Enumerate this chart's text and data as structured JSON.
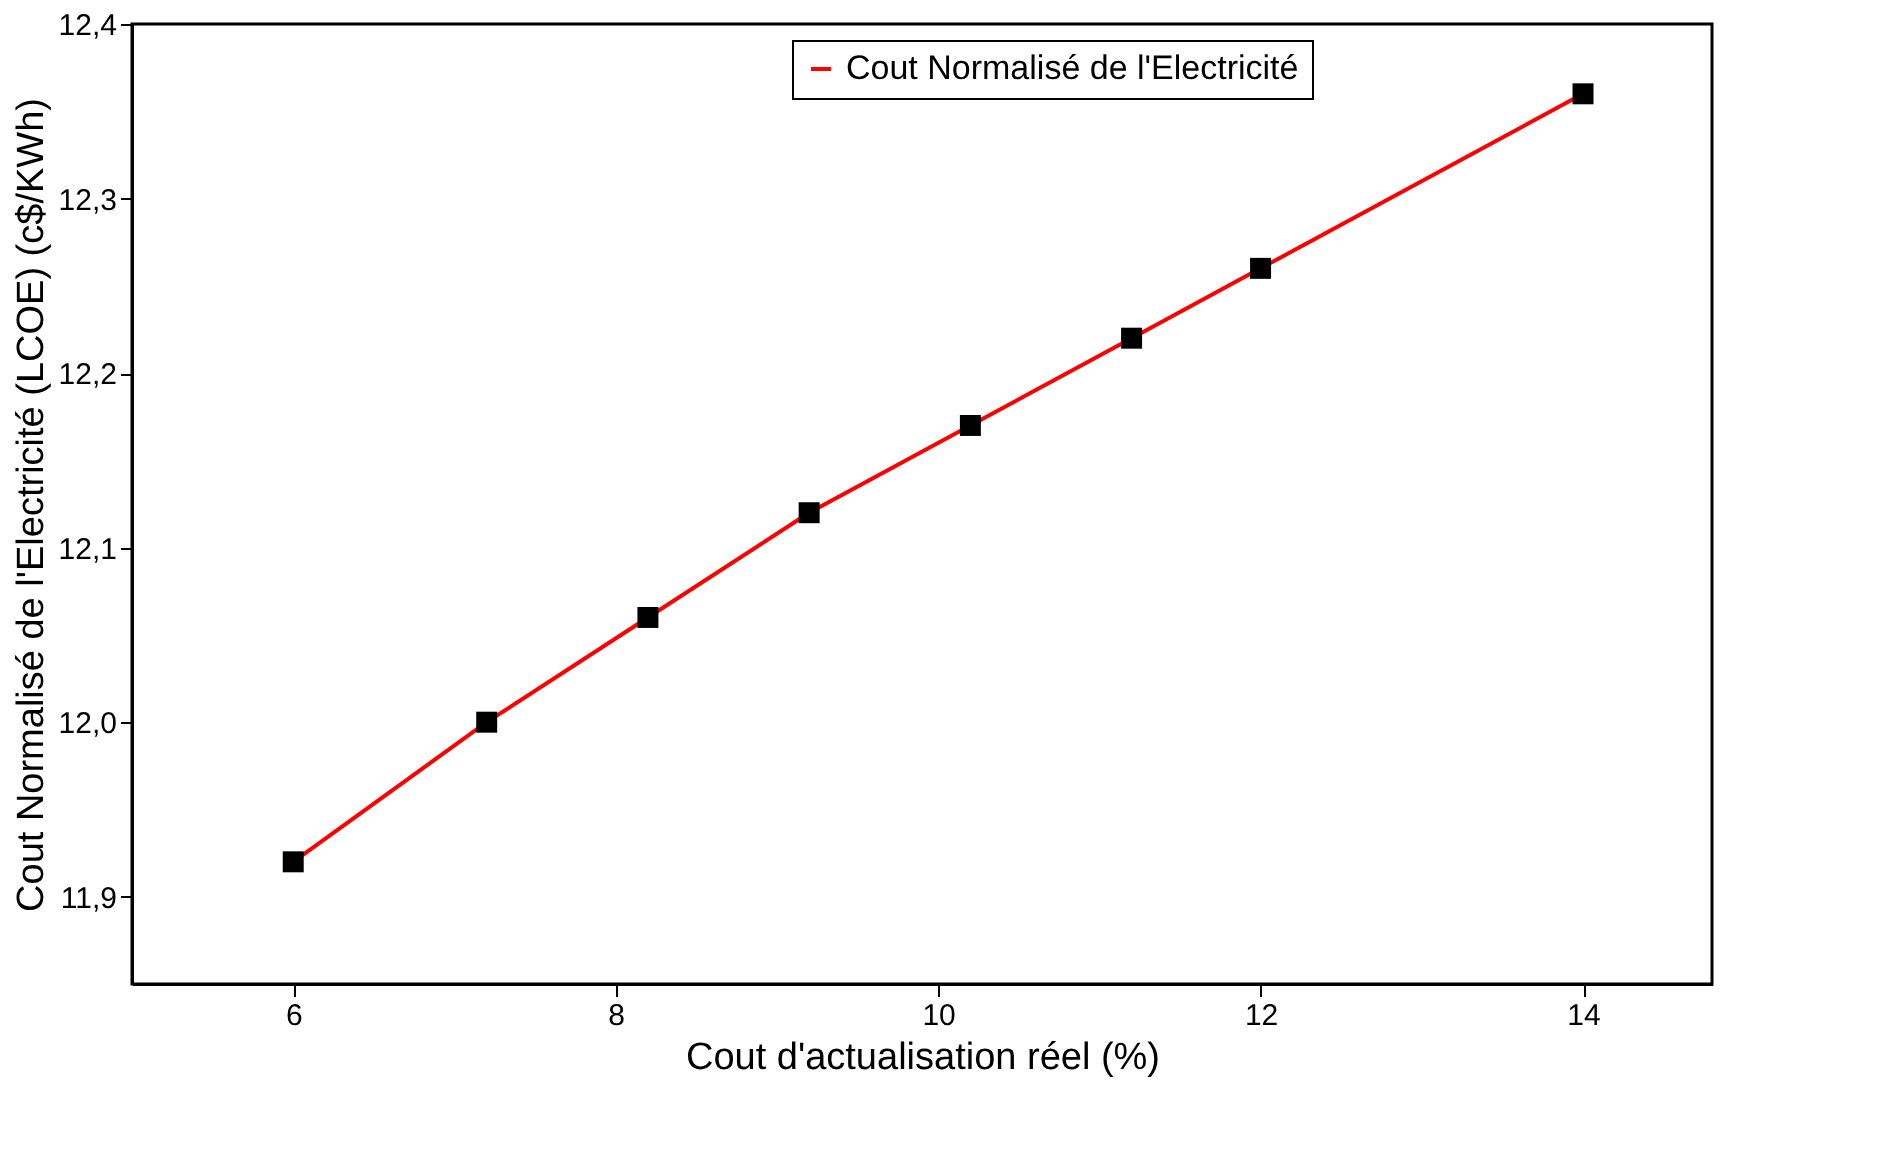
{
  "chart_data": {
    "type": "line",
    "xlabel": "Cout d'actualisation réel (%)",
    "ylabel": "Cout Normalisé de l'Electricité (LCOE) (c$/KWh)",
    "x": [
      6,
      7.2,
      8.2,
      9.2,
      10.2,
      11.2,
      12,
      14
    ],
    "series": [
      {
        "name": "Cout Normalisé de l'Electricité",
        "color": "#ff0000",
        "values": [
          11.92,
          12.0,
          12.06,
          12.12,
          12.17,
          12.22,
          12.26,
          12.36
        ]
      }
    ],
    "xlim": [
      5,
      14.8
    ],
    "xticks": [
      6,
      8,
      10,
      12,
      14
    ],
    "ylim": [
      11.85,
      12.4
    ],
    "yticks": [
      {
        "value": 11.9,
        "label": "11,9"
      },
      {
        "value": 12.0,
        "label": "12,0"
      },
      {
        "value": 12.1,
        "label": "12,1"
      },
      {
        "value": 12.2,
        "label": "12,2"
      },
      {
        "value": 12.3,
        "label": "12,3"
      },
      {
        "value": 12.4,
        "label": "12,4"
      }
    ],
    "marker": "square",
    "line_style": "solid",
    "grid": false,
    "legend": "top right"
  }
}
